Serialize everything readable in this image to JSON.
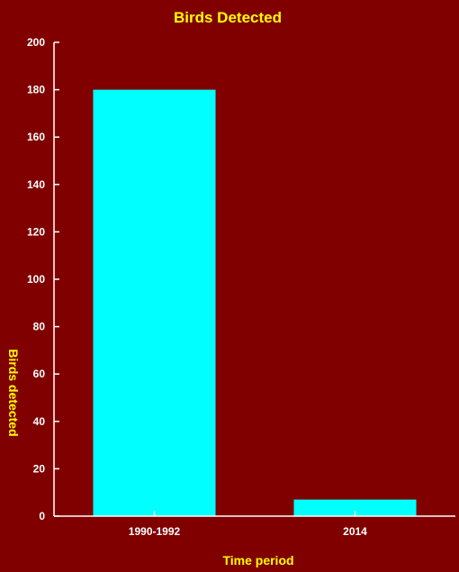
{
  "chart_data": {
    "type": "bar",
    "title": "Birds Detected",
    "xlabel": "Time period",
    "ylabel": "Birds detected",
    "categories": [
      "1990-1992",
      "2014"
    ],
    "values": [
      180,
      7
    ],
    "ylim": [
      0,
      200
    ],
    "yticks": [
      0,
      20,
      40,
      60,
      80,
      100,
      120,
      140,
      160,
      180,
      200
    ],
    "grid": false,
    "legend": "none",
    "colors": {
      "background": "#800000",
      "bar": "#00ffff",
      "axis": "#ffffff",
      "title": "#ffff00",
      "tick_text": "#ffffff"
    }
  }
}
